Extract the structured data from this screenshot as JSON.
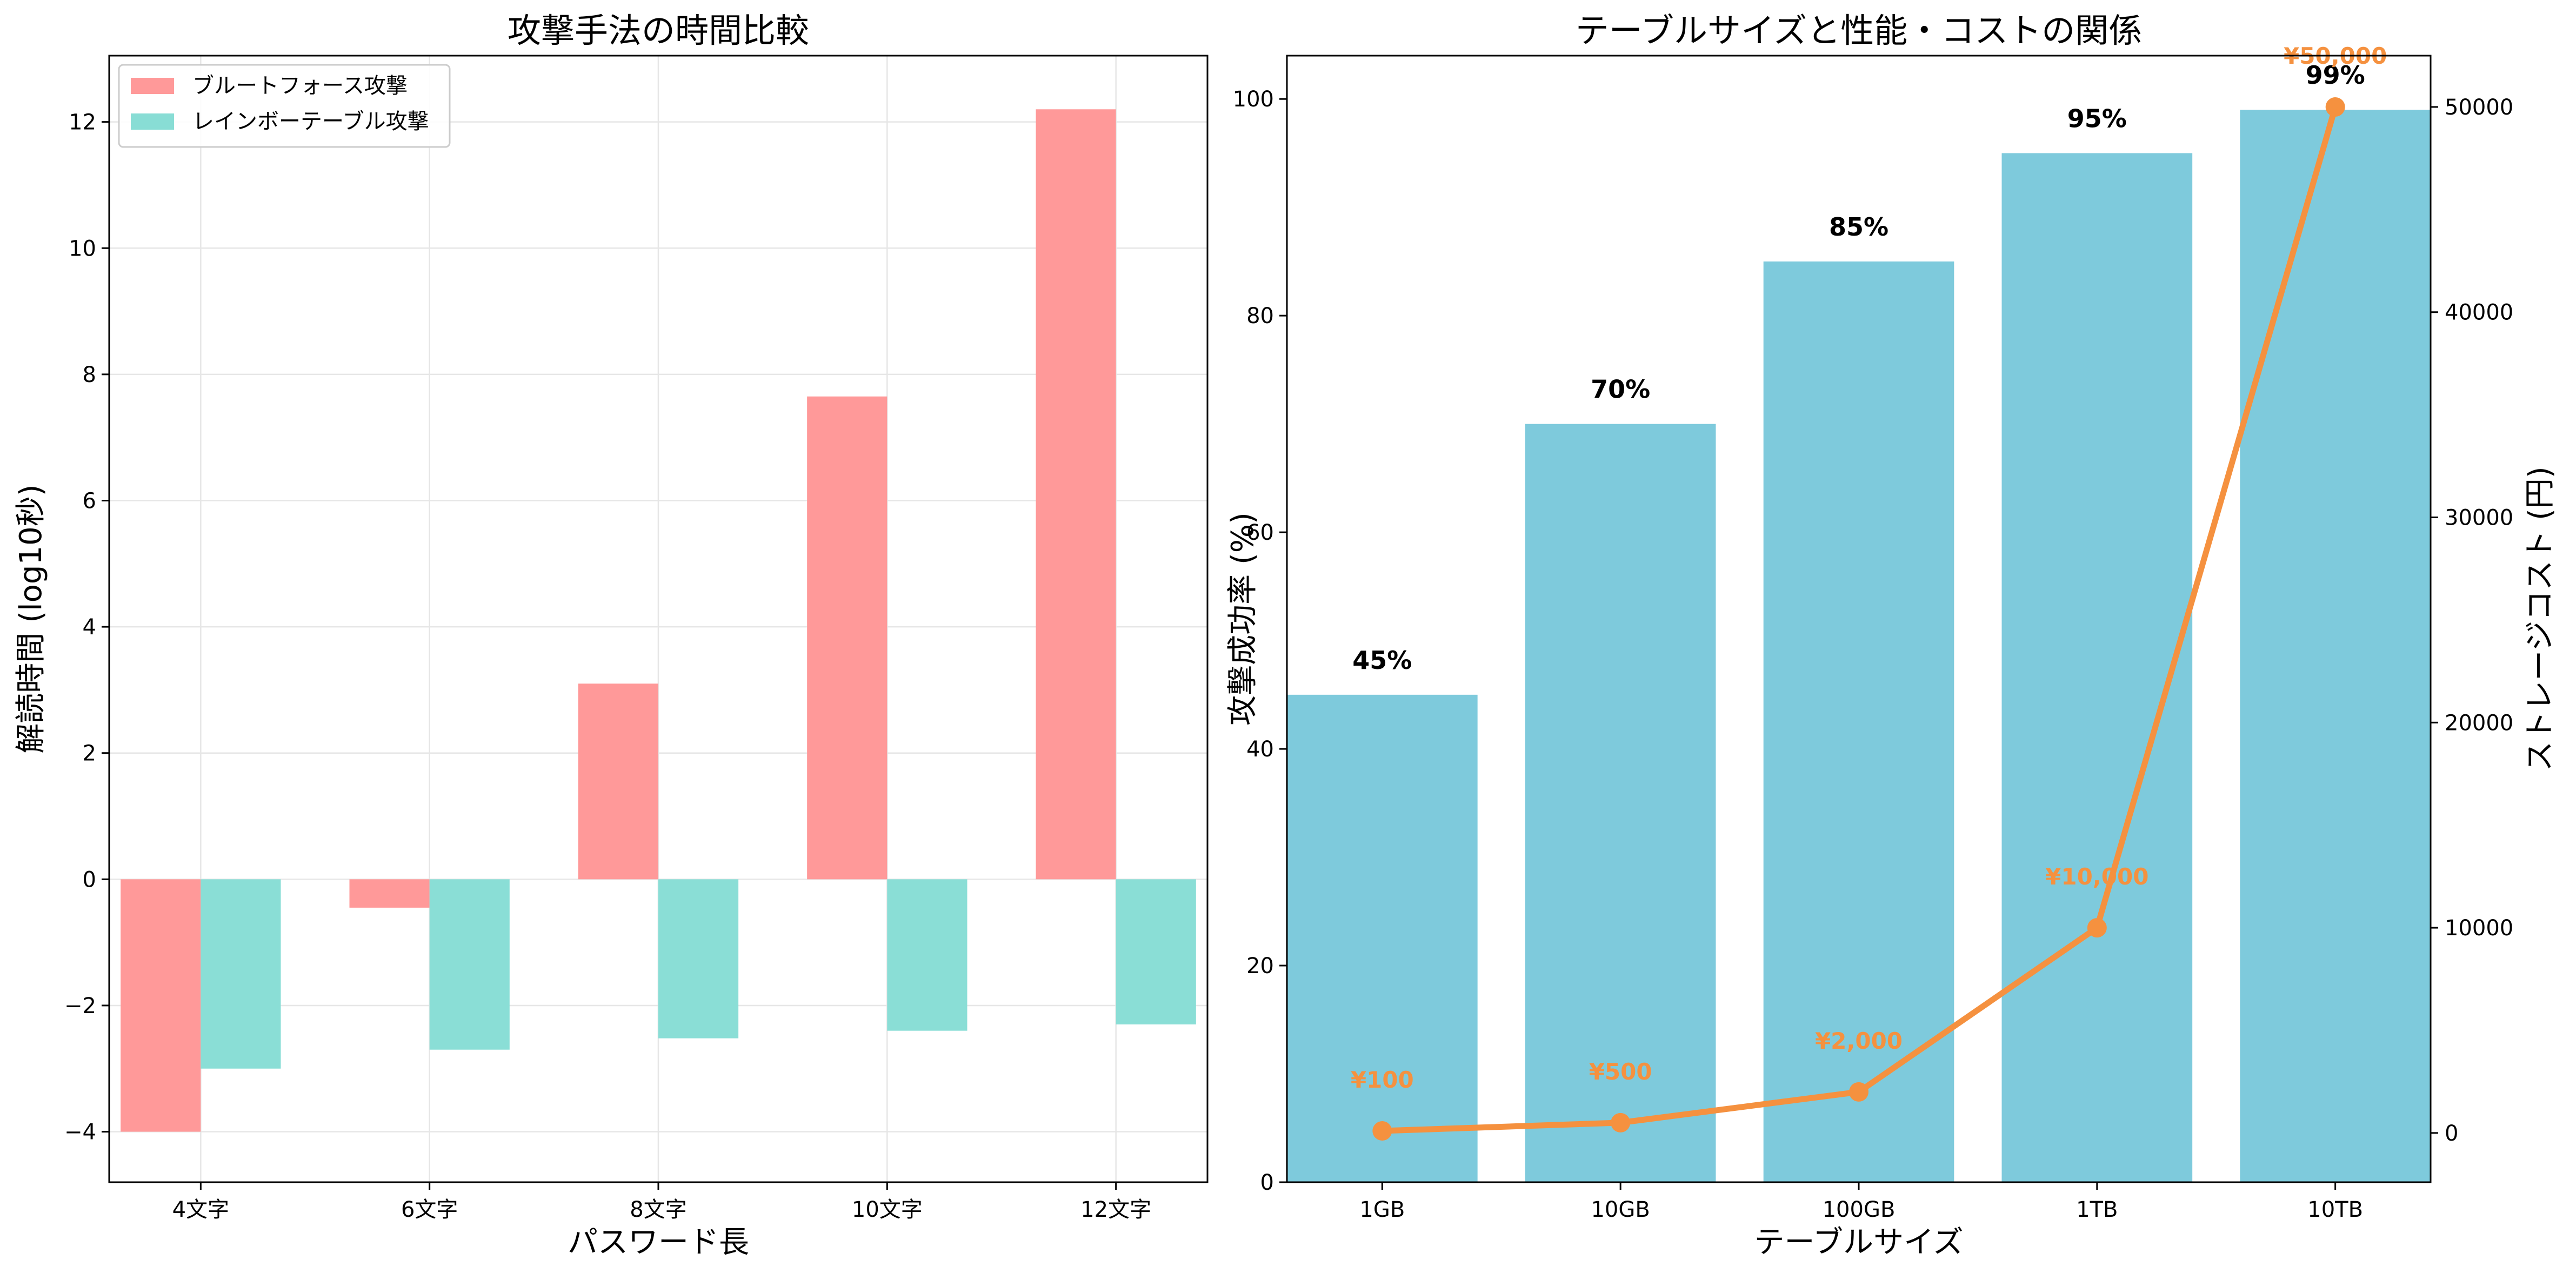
{
  "colors": {
    "brute": "#ff9999",
    "rainbow": "#88ddd5",
    "success_bar": "#7ecadc",
    "success_axis": "#45b7d1",
    "cost": "#f5913f",
    "grid": "#e6e6e6"
  },
  "chart_data": [
    {
      "type": "bar",
      "title": "攻撃手法の時間比較",
      "xlabel": "パスワード長",
      "ylabel": "解読時間 (log10秒)",
      "categories": [
        "4文字",
        "6文字",
        "8文字",
        "10文字",
        "12文字"
      ],
      "series": [
        {
          "name": "ブルートフォース攻撃",
          "values": [
            -4.0,
            -0.45,
            3.1,
            7.65,
            12.2
          ]
        },
        {
          "name": "レインボーテーブル攻撃",
          "values": [
            -3.0,
            -2.7,
            -2.52,
            -2.4,
            -2.3
          ]
        }
      ],
      "ylim": [
        -4.8,
        13.05
      ],
      "yticks": [
        -4,
        -2,
        0,
        2,
        4,
        6,
        8,
        10,
        12
      ],
      "yticklabels": [
        "−4",
        "−2",
        "0",
        "2",
        "4",
        "6",
        "8",
        "10",
        "12"
      ],
      "grid": true,
      "legend_position": "top-left"
    },
    {
      "type": "bar+line",
      "title": "テーブルサイズと性能・コストの関係",
      "xlabel": "テーブルサイズ",
      "ylabel_left": "攻撃成功率 (%)",
      "ylabel_right": "ストレージコスト (円)",
      "categories": [
        "1GB",
        "10GB",
        "100GB",
        "1TB",
        "10TB"
      ],
      "success_rate": [
        45,
        70,
        85,
        95,
        99
      ],
      "success_labels": [
        "45%",
        "70%",
        "85%",
        "95%",
        "99%"
      ],
      "cost": [
        100,
        500,
        2000,
        10000,
        50000
      ],
      "cost_labels": [
        "¥100",
        "¥500",
        "¥2,000",
        "¥10,000",
        "¥50,000"
      ],
      "ylim_left": [
        0,
        104
      ],
      "yticks_left": [
        0,
        20,
        40,
        60,
        80,
        100
      ],
      "ylim_right": [
        -2400,
        52500
      ],
      "yticks_right": [
        0,
        10000,
        20000,
        30000,
        40000,
        50000
      ],
      "grid": false
    }
  ]
}
